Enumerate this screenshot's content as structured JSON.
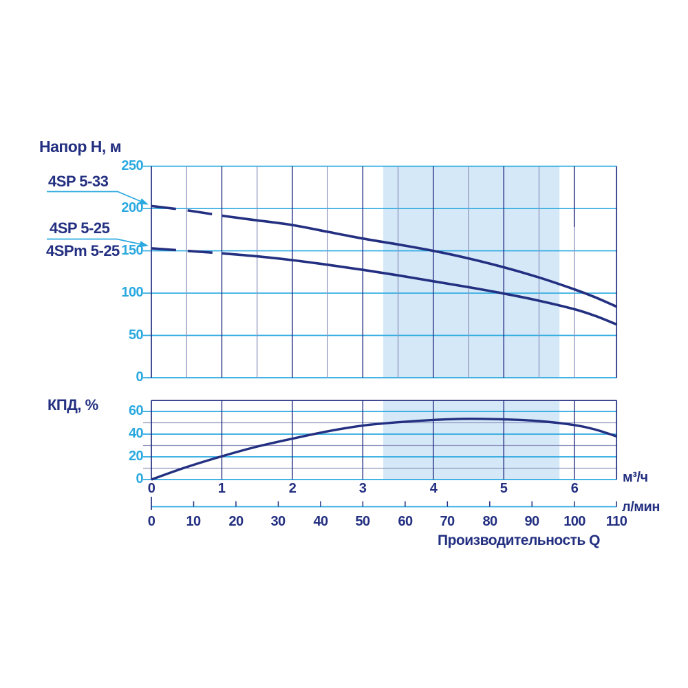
{
  "colors": {
    "navy": "#232f80",
    "cyan": "#2aa9e0",
    "gray_grid": "#9094bf",
    "band": "#d4e8f8",
    "background": "#ffffff"
  },
  "pump_labels": [
    {
      "text": "4SP 5-33"
    },
    {
      "text": "4SP 5-25"
    },
    {
      "text": "4SPm 5-25"
    }
  ],
  "chart_data": [
    {
      "type": "line",
      "title": "Напор Н, м",
      "xlabel": "Производительность Q",
      "ylabel": "Напор Н, м",
      "x_axis_units": {
        "m3h": "м³/ч",
        "lmin": "л/мин"
      },
      "xlim_m3h": [
        0,
        6.6
      ],
      "xlim_lmin": [
        0,
        110
      ],
      "ylim": [
        0,
        250
      ],
      "y_ticks": [
        250,
        200,
        150,
        100,
        50,
        0
      ],
      "x_ticks_m3h": [
        0,
        1,
        2,
        3,
        4,
        5,
        6
      ],
      "x_ticks_lmin": [
        0,
        10,
        20,
        30,
        40,
        50,
        60,
        70,
        80,
        90,
        100,
        110
      ],
      "grid": "on",
      "recommended_band_q_m3h": [
        3.29,
        5.79
      ],
      "series": [
        {
          "name": "4SP 5-33",
          "dashed_until_q": 1,
          "points": [
            [
              0,
              203
            ],
            [
              0.5,
              198
            ],
            [
              1,
              191.5
            ],
            [
              1.5,
              186
            ],
            [
              2,
              180.5
            ],
            [
              2.5,
              172.5
            ],
            [
              3,
              164.5
            ],
            [
              3.5,
              157.5
            ],
            [
              4,
              150
            ],
            [
              4.5,
              141
            ],
            [
              5,
              130.5
            ],
            [
              5.5,
              118.5
            ],
            [
              6,
              104.5
            ],
            [
              6.3,
              95
            ],
            [
              6.6,
              84
            ]
          ]
        },
        {
          "name": "4SP 5-25 / 4SPm 5-25",
          "dashed_until_q": 1,
          "points": [
            [
              0,
              153
            ],
            [
              0.5,
              150
            ],
            [
              1,
              147
            ],
            [
              1.5,
              143.5
            ],
            [
              2,
              139
            ],
            [
              2.5,
              133.5
            ],
            [
              3,
              127.5
            ],
            [
              3.5,
              121
            ],
            [
              4,
              114
            ],
            [
              4.5,
              107
            ],
            [
              5,
              99.5
            ],
            [
              5.5,
              91
            ],
            [
              6,
              81
            ],
            [
              6.3,
              73
            ],
            [
              6.6,
              63
            ]
          ]
        }
      ]
    },
    {
      "type": "line",
      "title": "КПД, %",
      "ylabel": "КПД, %",
      "ylim": [
        0,
        70
      ],
      "y_ticks": [
        60,
        40,
        20,
        0
      ],
      "y_minor_ticks": [
        50,
        30,
        10
      ],
      "x_ticks_m3h": [
        0,
        1,
        2,
        3,
        4,
        5,
        6
      ],
      "grid": "on",
      "recommended_band_q_m3h": [
        3.29,
        5.79
      ],
      "series": [
        {
          "name": "КПД",
          "points": [
            [
              0,
              0
            ],
            [
              0.5,
              11
            ],
            [
              1,
              20.5
            ],
            [
              1.5,
              29
            ],
            [
              2,
              36
            ],
            [
              2.5,
              42.5
            ],
            [
              3,
              47.5
            ],
            [
              3.5,
              50.5
            ],
            [
              4,
              52.5
            ],
            [
              4.5,
              53.5
            ],
            [
              5,
              53
            ],
            [
              5.5,
              51.5
            ],
            [
              6,
              48
            ],
            [
              6.3,
              44
            ],
            [
              6.6,
              38
            ]
          ]
        }
      ]
    }
  ]
}
